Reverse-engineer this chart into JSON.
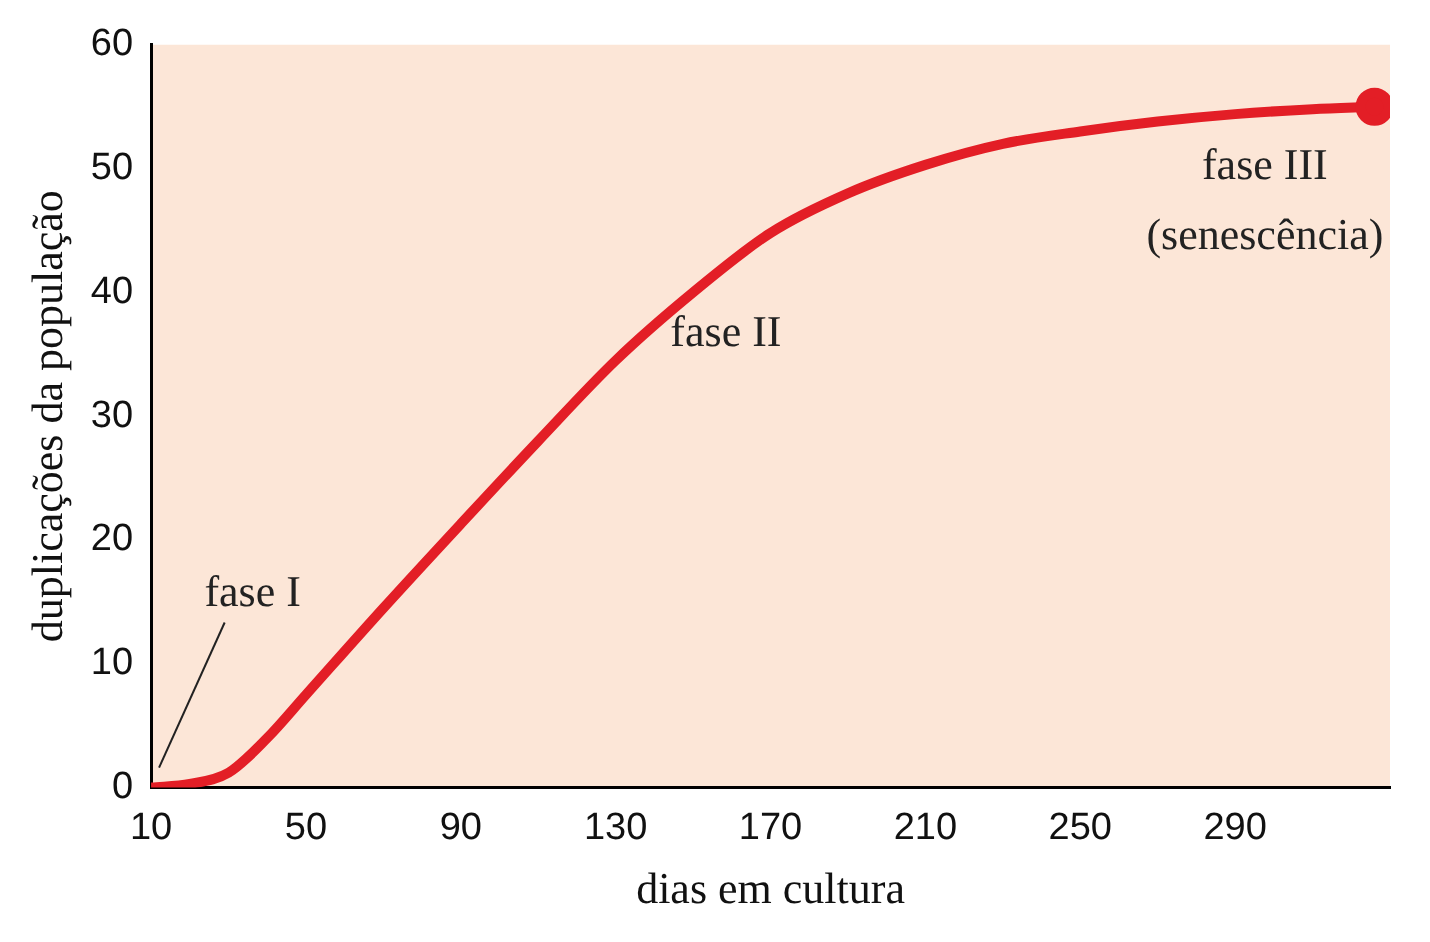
{
  "chart_data": {
    "type": "line",
    "xlabel": "dias em cultura",
    "ylabel": "duplicações da população",
    "x": [
      10,
      20,
      30,
      40,
      50,
      70,
      90,
      110,
      130,
      150,
      170,
      190,
      210,
      230,
      250,
      270,
      290,
      310,
      326
    ],
    "values": [
      0,
      0.3,
      1.2,
      4,
      7.5,
      14.5,
      21.3,
      28,
      34.5,
      40,
      44.8,
      48,
      50.3,
      52,
      53,
      53.8,
      54.4,
      54.8,
      55
    ],
    "color": "#e31e26",
    "xlim": [
      10,
      330
    ],
    "xticks": [
      10,
      50,
      90,
      130,
      170,
      210,
      250,
      290
    ],
    "ylim": [
      0,
      60
    ],
    "yticks": [
      0,
      10,
      20,
      30,
      40,
      50,
      60
    ],
    "grid": false,
    "legend": false,
    "annotations": [
      "fase I",
      "fase II",
      "fase III",
      "(senescência)"
    ]
  }
}
